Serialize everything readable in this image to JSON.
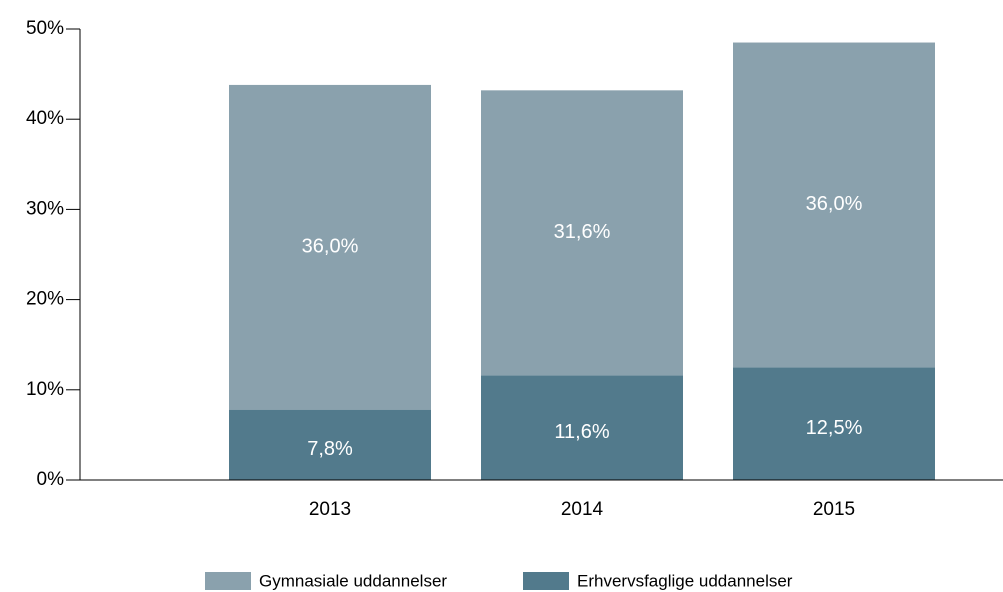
{
  "chart_data": {
    "type": "bar",
    "stacked": true,
    "categories": [
      "2013",
      "2014",
      "2015"
    ],
    "series": [
      {
        "name": "Gymnasiale uddannelser",
        "color": "#8aa1ad",
        "values": [
          36.0,
          31.6,
          36.0
        ],
        "value_labels": [
          "36,0%",
          "31,6%",
          "36,0%"
        ]
      },
      {
        "name": "Erhvervsfaglige uddannelser",
        "color": "#527a8c",
        "values": [
          7.8,
          11.6,
          12.5
        ],
        "value_labels": [
          "7,8%",
          "11,6%",
          "12,5%"
        ]
      }
    ],
    "ylim": [
      0,
      50
    ],
    "yticks": [
      {
        "value": 0,
        "label": "0%"
      },
      {
        "value": 10,
        "label": "10%"
      },
      {
        "value": 20,
        "label": "20%"
      },
      {
        "value": 30,
        "label": "30%"
      },
      {
        "value": 40,
        "label": "40%"
      },
      {
        "value": 50,
        "label": "50%"
      }
    ],
    "legend": "bottom"
  }
}
